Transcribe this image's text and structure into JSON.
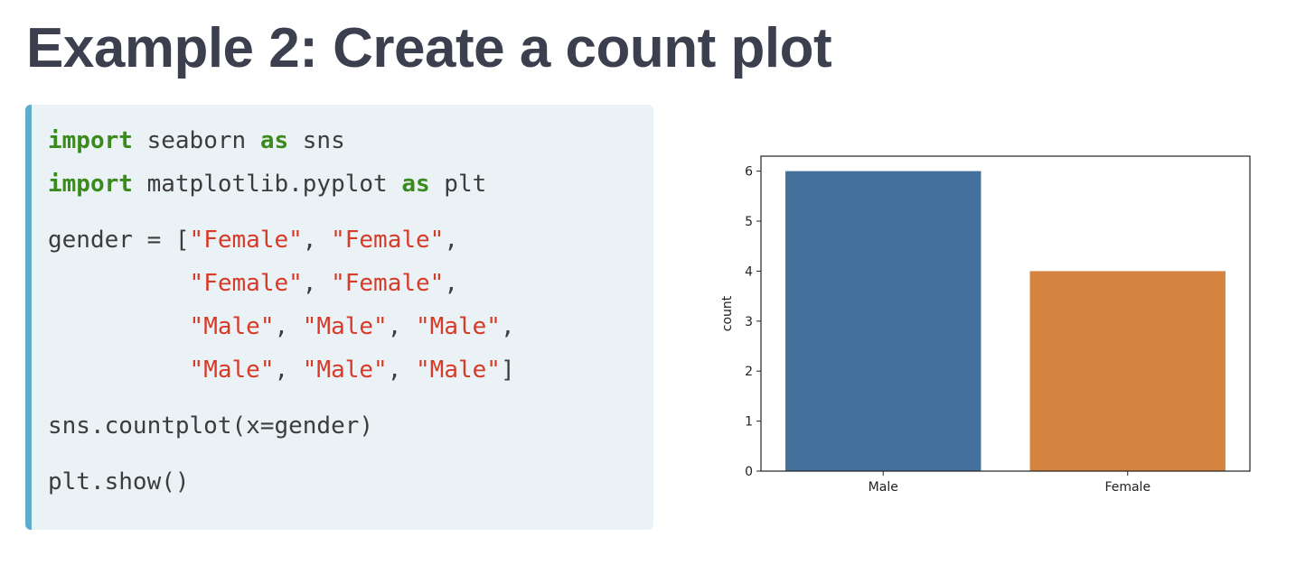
{
  "title": "Example 2: Create a count plot",
  "code": {
    "line1": {
      "kw1": "import",
      "text1": " seaborn ",
      "kw2": "as",
      "text2": " sns"
    },
    "line2": {
      "kw1": "import",
      "text1": " matplotlib.pyplot ",
      "kw2": "as",
      "text2": " plt"
    },
    "line3": {
      "text1": "gender = [",
      "s1": "\"Female\"",
      "text2": ", ",
      "s2": "\"Female\"",
      "text3": ","
    },
    "line4": {
      "indent": "          ",
      "s1": "\"Female\"",
      "text1": ", ",
      "s2": "\"Female\"",
      "text2": ","
    },
    "line5": {
      "indent": "          ",
      "s1": "\"Male\"",
      "text1": ", ",
      "s2": "\"Male\"",
      "text2": ", ",
      "s3": "\"Male\"",
      "text3": ","
    },
    "line6": {
      "indent": "          ",
      "s1": "\"Male\"",
      "text1": ", ",
      "s2": "\"Male\"",
      "text2": ", ",
      "s3": "\"Male\"",
      "text3": "]"
    },
    "line7": "sns.countplot(x=gender)",
    "line8": "plt.show()"
  },
  "colors": {
    "keyword": "#3a8a1d",
    "string": "#d63a28",
    "panel_bg": "#ebf2f6",
    "panel_accent": "#5eacc9"
  },
  "chart_data": {
    "type": "bar",
    "categories": [
      "Male",
      "Female"
    ],
    "values": [
      6,
      4
    ],
    "colors": [
      "#44719c",
      "#d4843f"
    ],
    "title": "",
    "xlabel": "",
    "ylabel": "count",
    "ylim": [
      0,
      6.3
    ],
    "yticks": [
      0,
      1,
      2,
      3,
      4,
      5,
      6
    ],
    "grid": false
  }
}
